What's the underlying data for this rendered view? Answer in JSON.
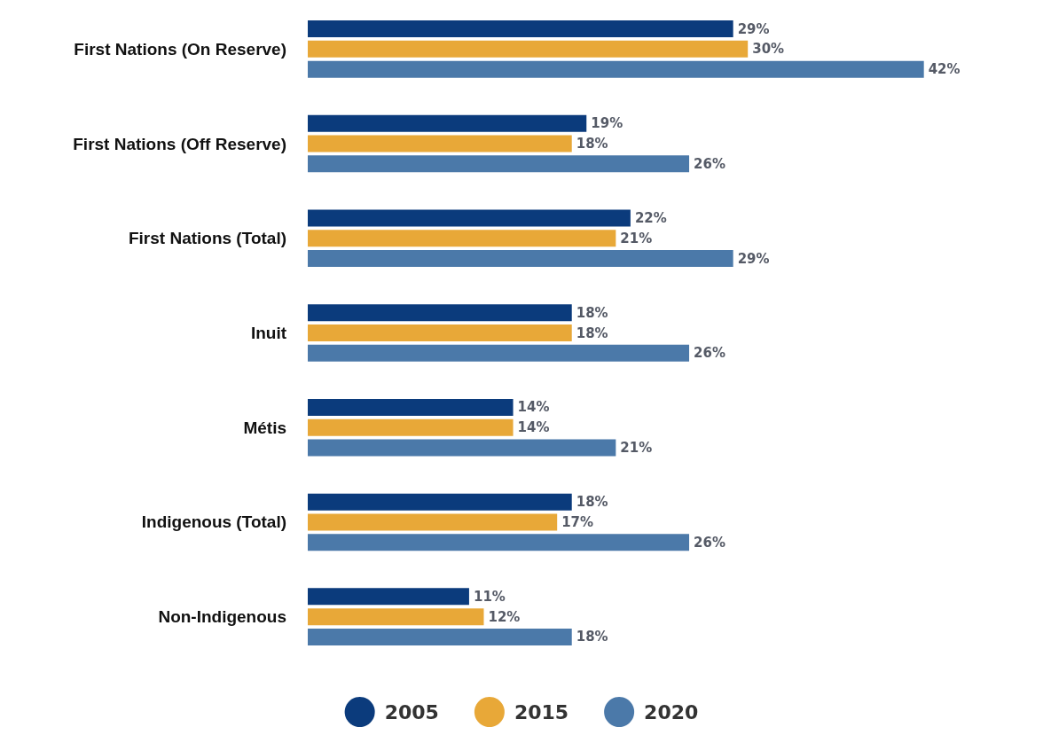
{
  "chart_data": {
    "type": "bar",
    "orientation": "horizontal",
    "legend": "bottom",
    "categories": [
      "First Nations (On Reserve)",
      "First Nations (Off Reserve)",
      "First Nations (Total)",
      "Inuit",
      "Métis",
      "Indigenous (Total)",
      "Non-Indigenous"
    ],
    "series": [
      {
        "name": "2005",
        "color": "#0b3b7c",
        "values": [
          29,
          19,
          22,
          18,
          14,
          18,
          11
        ],
        "value_labels": [
          "29%",
          "19%",
          "22%",
          "18%",
          "14%",
          "18%",
          "11%"
        ]
      },
      {
        "name": "2015",
        "color": "#e8a838",
        "values": [
          30,
          18,
          21,
          18,
          14,
          17,
          12
        ],
        "value_labels": [
          "30%",
          "18%",
          "21%",
          "18%",
          "14%",
          "17%",
          "12%"
        ]
      },
      {
        "name": "2020",
        "color": "#4b79a9",
        "values": [
          42,
          26,
          29,
          26,
          21,
          26,
          18
        ],
        "value_labels": [
          "42%",
          "26%",
          "29%",
          "26%",
          "21%",
          "26%",
          "18%"
        ]
      }
    ]
  }
}
